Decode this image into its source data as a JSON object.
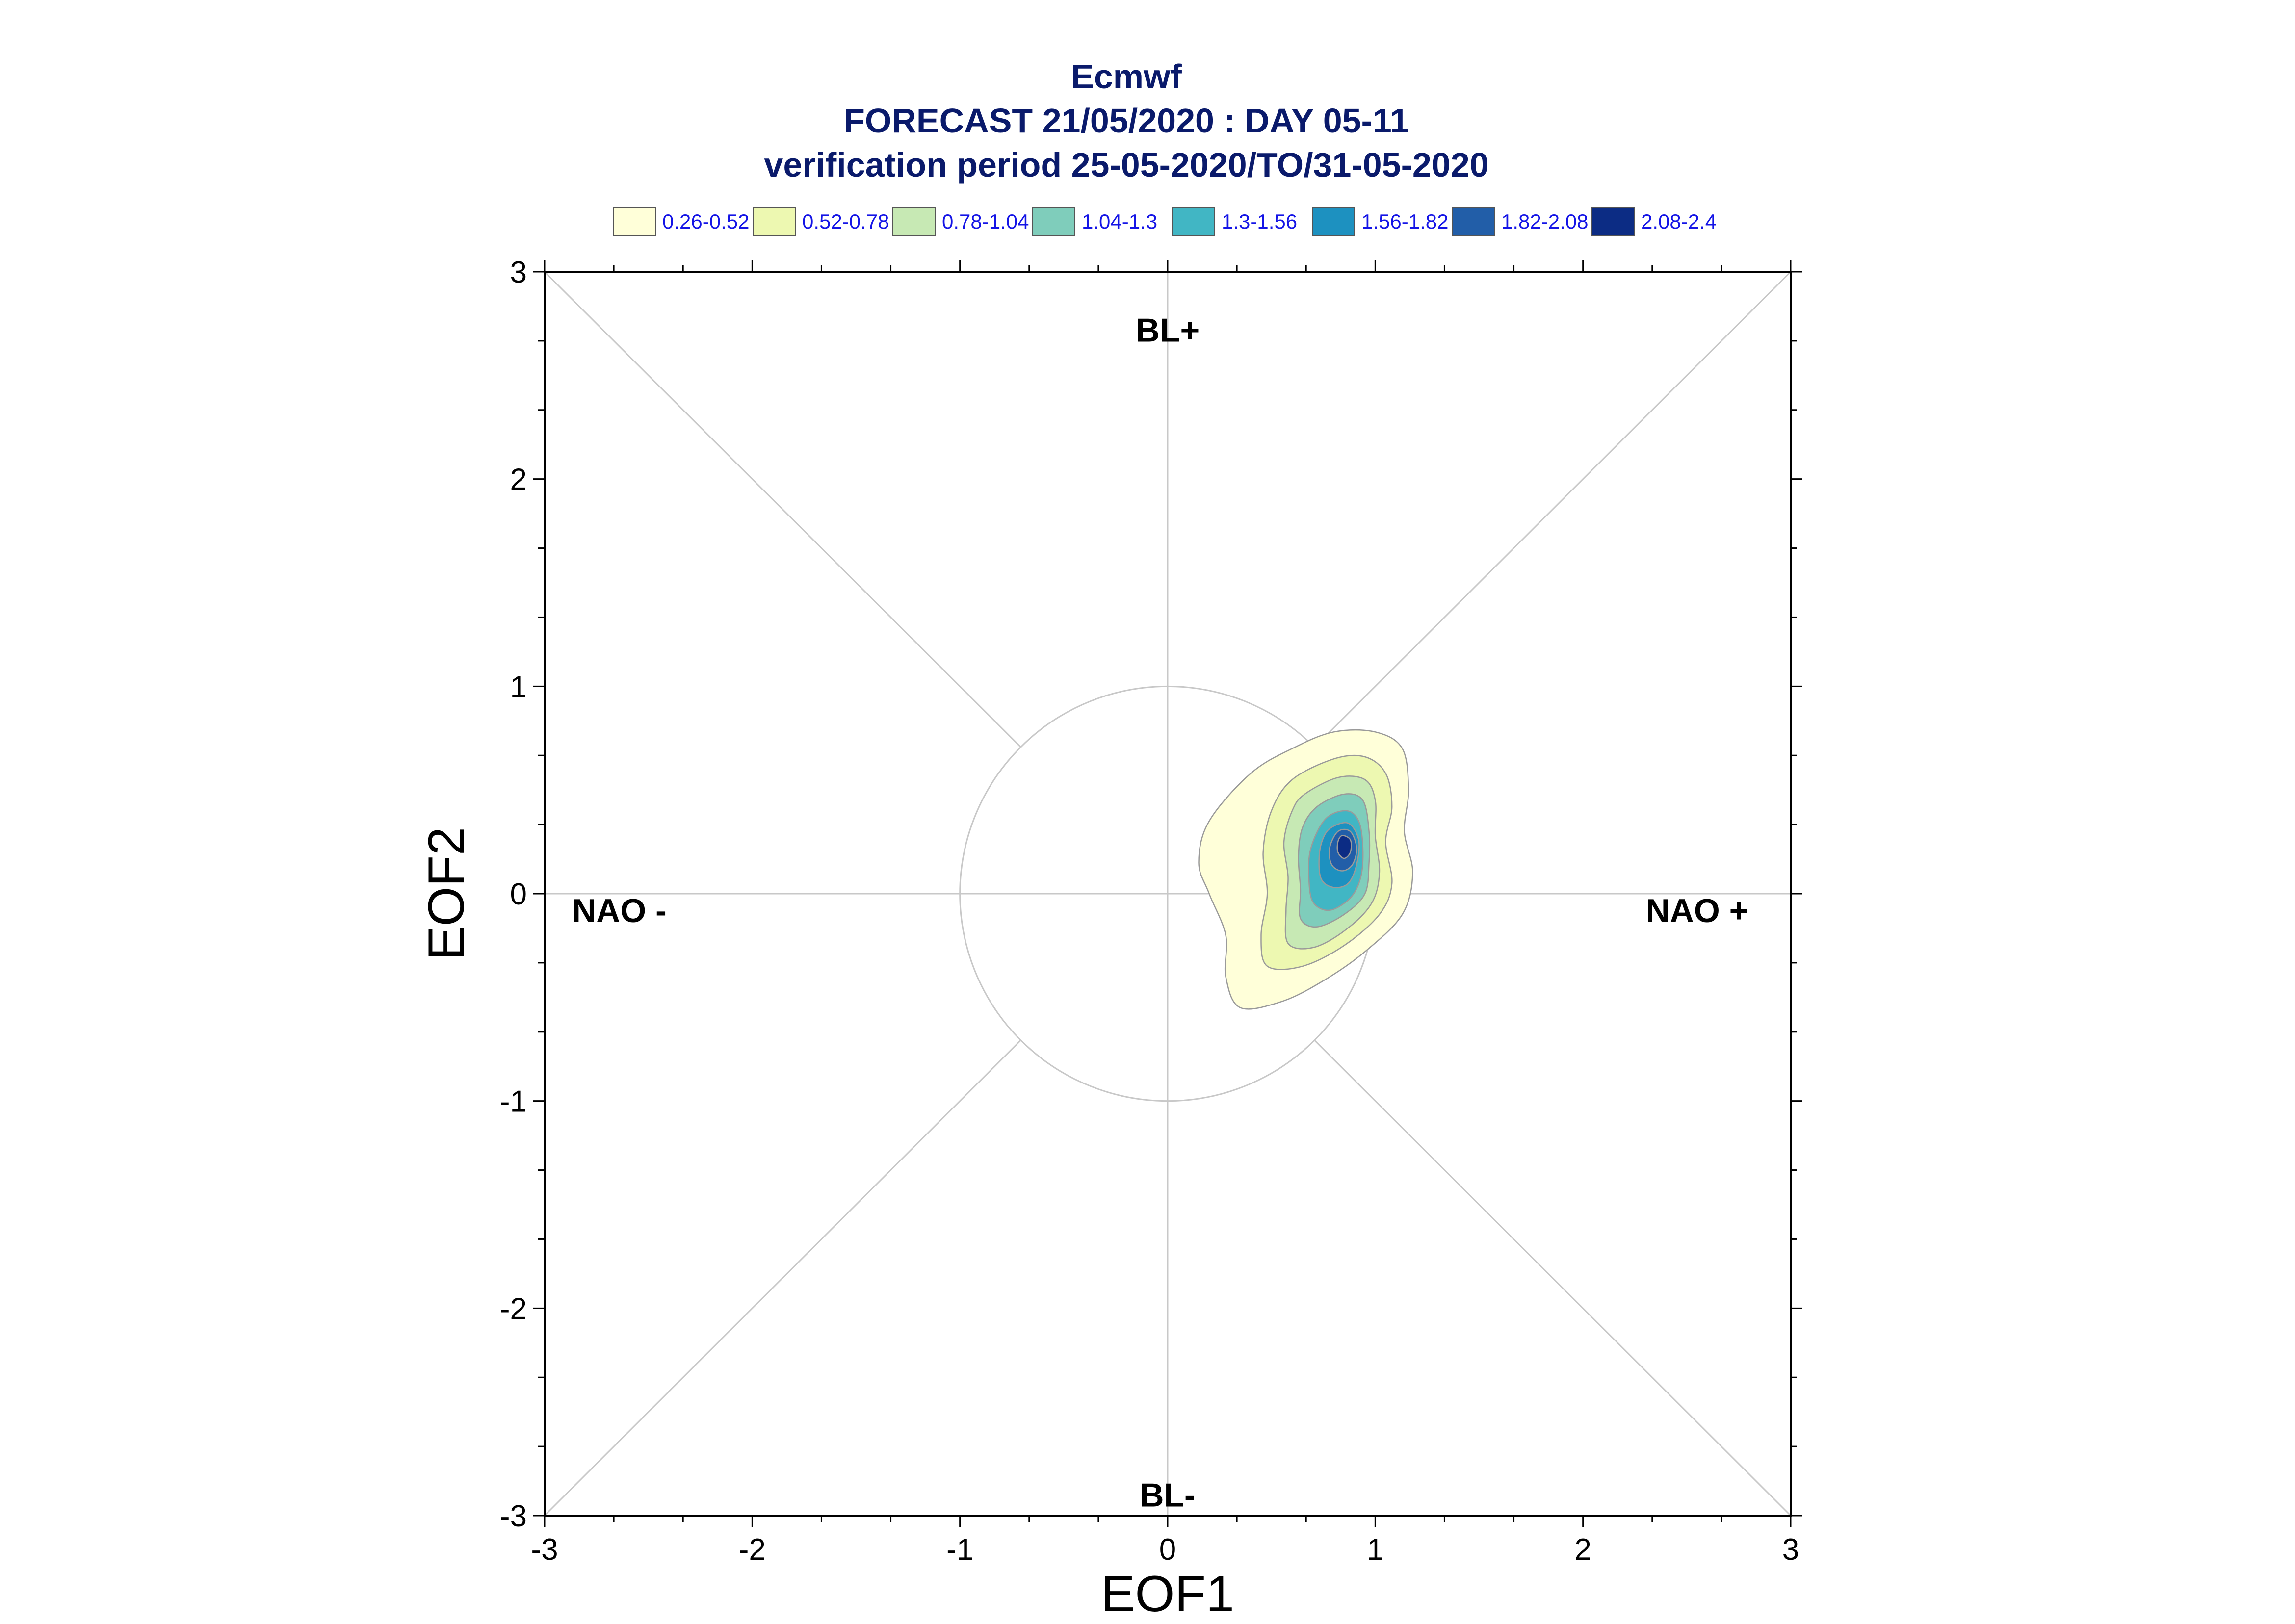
{
  "chart_data": {
    "type": "contour",
    "title_lines": [
      "Ecmwf",
      "FORECAST 21/05/2020 : DAY 05-11",
      "verification period 25-05-2020/TO/31-05-2020"
    ],
    "xlabel": "EOF1",
    "ylabel": "EOF2",
    "xlim": [
      -3,
      3
    ],
    "ylim": [
      -3,
      3
    ],
    "x_ticks": [
      -3,
      -2,
      -1,
      0,
      1,
      2,
      3
    ],
    "y_ticks": [
      -3,
      -2,
      -1,
      0,
      1,
      2,
      3
    ],
    "x_tick_labels": [
      "-3",
      "-2",
      "-1",
      "0",
      "1",
      "2",
      "3"
    ],
    "y_tick_labels": [
      "-3",
      "-2",
      "-1",
      "0",
      "1",
      "2",
      "3"
    ],
    "regions": [
      {
        "label": "BL+",
        "x": 0.0,
        "y": 2.72
      },
      {
        "label": "BL-",
        "x": 0.0,
        "y": -2.9
      },
      {
        "label": "NAO -",
        "x": -2.64,
        "y": -0.08
      },
      {
        "label": "NAO +",
        "x": 2.55,
        "y": -0.08
      }
    ],
    "reference_circle_radius": 1,
    "legend": [
      {
        "label": "0.26-0.52",
        "color": "#ffffd9"
      },
      {
        "label": "0.52-0.78",
        "color": "#edf8b1"
      },
      {
        "label": "0.78-1.04",
        "color": "#c7e9b4"
      },
      {
        "label": "1.04-1.3",
        "color": "#7fcdbb"
      },
      {
        "label": "1.3-1.56",
        "color": "#41b6c4"
      },
      {
        "label": "1.56-1.82",
        "color": "#1d91c0"
      },
      {
        "label": "1.82-2.08",
        "color": "#225ea8"
      },
      {
        "label": "2.08-2.4",
        "color": "#0c2c84"
      }
    ],
    "density_contours": [
      {
        "level": "0.26-0.52",
        "color": "#ffffd9",
        "points": [
          [
            0.4,
            0.58
          ],
          [
            0.6,
            0.7
          ],
          [
            0.8,
            0.78
          ],
          [
            1.0,
            0.78
          ],
          [
            1.13,
            0.7
          ],
          [
            1.16,
            0.5
          ],
          [
            1.14,
            0.3
          ],
          [
            1.18,
            0.1
          ],
          [
            1.13,
            -0.1
          ],
          [
            0.95,
            -0.28
          ],
          [
            0.75,
            -0.42
          ],
          [
            0.55,
            -0.52
          ],
          [
            0.35,
            -0.55
          ],
          [
            0.28,
            -0.4
          ],
          [
            0.28,
            -0.2
          ],
          [
            0.2,
            0.0
          ],
          [
            0.15,
            0.15
          ],
          [
            0.2,
            0.35
          ]
        ]
      },
      {
        "level": "0.52-0.78",
        "color": "#edf8b1",
        "points": [
          [
            0.6,
            0.55
          ],
          [
            0.8,
            0.65
          ],
          [
            0.95,
            0.66
          ],
          [
            1.05,
            0.58
          ],
          [
            1.08,
            0.42
          ],
          [
            1.05,
            0.25
          ],
          [
            1.08,
            0.05
          ],
          [
            1.02,
            -0.1
          ],
          [
            0.85,
            -0.25
          ],
          [
            0.65,
            -0.35
          ],
          [
            0.48,
            -0.35
          ],
          [
            0.45,
            -0.2
          ],
          [
            0.48,
            0.0
          ],
          [
            0.46,
            0.2
          ],
          [
            0.5,
            0.4
          ]
        ]
      },
      {
        "level": "0.78-1.04",
        "color": "#c7e9b4",
        "points": [
          [
            0.66,
            0.48
          ],
          [
            0.82,
            0.56
          ],
          [
            0.95,
            0.55
          ],
          [
            1.0,
            0.45
          ],
          [
            1.0,
            0.28
          ],
          [
            1.02,
            0.1
          ],
          [
            0.98,
            -0.05
          ],
          [
            0.85,
            -0.18
          ],
          [
            0.7,
            -0.26
          ],
          [
            0.58,
            -0.24
          ],
          [
            0.57,
            -0.08
          ],
          [
            0.58,
            0.08
          ],
          [
            0.56,
            0.25
          ],
          [
            0.6,
            0.4
          ]
        ]
      },
      {
        "level": "1.04-1.3",
        "color": "#7fcdbb",
        "points": [
          [
            0.72,
            0.42
          ],
          [
            0.85,
            0.48
          ],
          [
            0.94,
            0.45
          ],
          [
            0.97,
            0.3
          ],
          [
            0.97,
            0.15
          ],
          [
            0.95,
            0.0
          ],
          [
            0.85,
            -0.1
          ],
          [
            0.72,
            -0.16
          ],
          [
            0.64,
            -0.12
          ],
          [
            0.64,
            0.02
          ],
          [
            0.63,
            0.18
          ],
          [
            0.65,
            0.32
          ]
        ]
      },
      {
        "level": "1.3-1.56",
        "color": "#41b6c4",
        "points": [
          [
            0.76,
            0.36
          ],
          [
            0.86,
            0.4
          ],
          [
            0.92,
            0.35
          ],
          [
            0.94,
            0.22
          ],
          [
            0.93,
            0.08
          ],
          [
            0.88,
            -0.02
          ],
          [
            0.78,
            -0.08
          ],
          [
            0.7,
            -0.04
          ],
          [
            0.68,
            0.08
          ],
          [
            0.69,
            0.22
          ]
        ]
      },
      {
        "level": "1.56-1.82",
        "color": "#1d91c0",
        "points": [
          [
            0.79,
            0.32
          ],
          [
            0.87,
            0.34
          ],
          [
            0.92,
            0.26
          ],
          [
            0.91,
            0.14
          ],
          [
            0.87,
            0.05
          ],
          [
            0.8,
            0.03
          ],
          [
            0.74,
            0.07
          ],
          [
            0.73,
            0.18
          ],
          [
            0.75,
            0.27
          ]
        ]
      },
      {
        "level": "1.82-2.08",
        "color": "#225ea8",
        "points": [
          [
            0.82,
            0.3
          ],
          [
            0.88,
            0.3
          ],
          [
            0.91,
            0.22
          ],
          [
            0.89,
            0.14
          ],
          [
            0.84,
            0.11
          ],
          [
            0.79,
            0.14
          ],
          [
            0.78,
            0.22
          ]
        ]
      },
      {
        "level": "2.08-2.4",
        "color": "#0c2c84",
        "points": [
          [
            0.84,
            0.28
          ],
          [
            0.88,
            0.26
          ],
          [
            0.88,
            0.2
          ],
          [
            0.85,
            0.17
          ],
          [
            0.82,
            0.2
          ],
          [
            0.82,
            0.25
          ]
        ]
      }
    ]
  }
}
